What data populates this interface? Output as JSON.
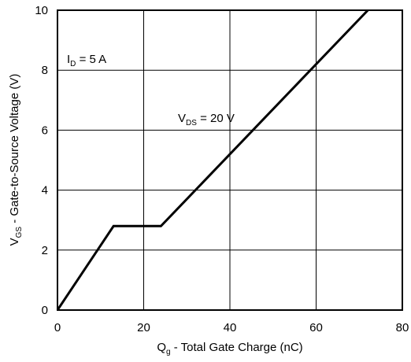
{
  "chart_data": {
    "type": "line",
    "x": [
      0,
      13,
      24,
      72
    ],
    "series": [
      {
        "values": [
          0,
          2.8,
          2.8,
          10
        ]
      }
    ],
    "xlim": [
      0,
      80
    ],
    "ylim": [
      0,
      10
    ],
    "xticks": [
      0,
      20,
      40,
      60,
      80
    ],
    "yticks": [
      0,
      2,
      4,
      6,
      8,
      10
    ],
    "grid": true,
    "xlabel": {
      "main": "Q",
      "sub": "g",
      "rest": " - Total Gate Charge (nC)"
    },
    "ylabel": {
      "main": "V",
      "sub": "GS",
      "rest": " - Gate-to-Source Voltage (V)"
    },
    "annotations": [
      {
        "main": "I",
        "sub": "D",
        "rest": " = 5 A"
      },
      {
        "main": "V",
        "sub": "DS",
        "rest": " = 20 V"
      }
    ],
    "line_color": "#000000"
  }
}
